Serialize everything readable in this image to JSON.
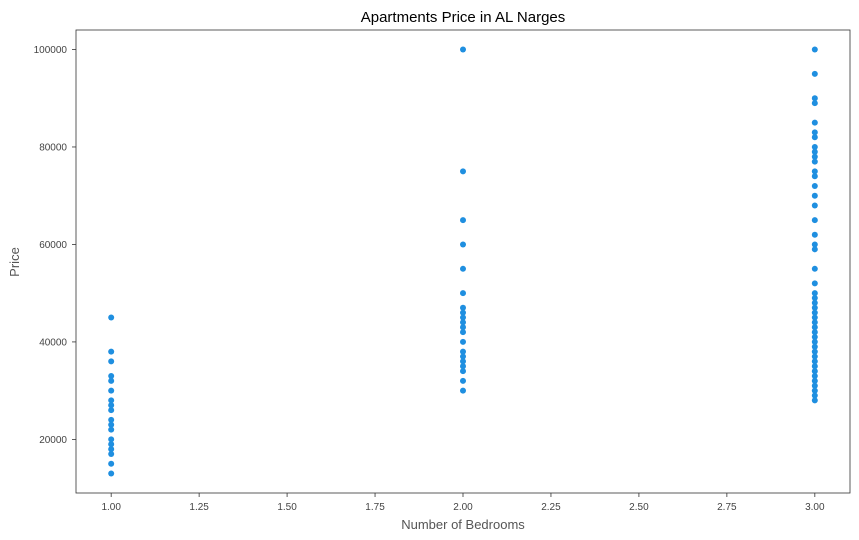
{
  "chart_data": {
    "type": "scatter",
    "title": "Apartments Price in AL Narges",
    "xlabel": "Number of Bedrooms",
    "ylabel": "Price",
    "xlim": [
      0.9,
      3.1
    ],
    "ylim": [
      9000,
      104000
    ],
    "xticks": [
      "1.00",
      "1.25",
      "1.50",
      "1.75",
      "2.00",
      "2.25",
      "2.50",
      "2.75",
      "3.00"
    ],
    "yticks": [
      "20000",
      "40000",
      "60000",
      "80000",
      "100000"
    ],
    "grid": false,
    "marker_color": "#1f8fe0",
    "points": [
      {
        "x": 1,
        "y": 45000
      },
      {
        "x": 1,
        "y": 38000
      },
      {
        "x": 1,
        "y": 36000
      },
      {
        "x": 1,
        "y": 33000
      },
      {
        "x": 1,
        "y": 32000
      },
      {
        "x": 1,
        "y": 30000
      },
      {
        "x": 1,
        "y": 28000
      },
      {
        "x": 1,
        "y": 27000
      },
      {
        "x": 1,
        "y": 26000
      },
      {
        "x": 1,
        "y": 24000
      },
      {
        "x": 1,
        "y": 23000
      },
      {
        "x": 1,
        "y": 22000
      },
      {
        "x": 1,
        "y": 20000
      },
      {
        "x": 1,
        "y": 19000
      },
      {
        "x": 1,
        "y": 18000
      },
      {
        "x": 1,
        "y": 17000
      },
      {
        "x": 1,
        "y": 15000
      },
      {
        "x": 1,
        "y": 13000
      },
      {
        "x": 2,
        "y": 100000
      },
      {
        "x": 2,
        "y": 75000
      },
      {
        "x": 2,
        "y": 65000
      },
      {
        "x": 2,
        "y": 60000
      },
      {
        "x": 2,
        "y": 55000
      },
      {
        "x": 2,
        "y": 50000
      },
      {
        "x": 2,
        "y": 47000
      },
      {
        "x": 2,
        "y": 46000
      },
      {
        "x": 2,
        "y": 45000
      },
      {
        "x": 2,
        "y": 44000
      },
      {
        "x": 2,
        "y": 43000
      },
      {
        "x": 2,
        "y": 42000
      },
      {
        "x": 2,
        "y": 40000
      },
      {
        "x": 2,
        "y": 38000
      },
      {
        "x": 2,
        "y": 37000
      },
      {
        "x": 2,
        "y": 36000
      },
      {
        "x": 2,
        "y": 35000
      },
      {
        "x": 2,
        "y": 34000
      },
      {
        "x": 2,
        "y": 32000
      },
      {
        "x": 2,
        "y": 30000
      },
      {
        "x": 3,
        "y": 100000
      },
      {
        "x": 3,
        "y": 95000
      },
      {
        "x": 3,
        "y": 90000
      },
      {
        "x": 3,
        "y": 89000
      },
      {
        "x": 3,
        "y": 85000
      },
      {
        "x": 3,
        "y": 83000
      },
      {
        "x": 3,
        "y": 82000
      },
      {
        "x": 3,
        "y": 80000
      },
      {
        "x": 3,
        "y": 79000
      },
      {
        "x": 3,
        "y": 78000
      },
      {
        "x": 3,
        "y": 77000
      },
      {
        "x": 3,
        "y": 75000
      },
      {
        "x": 3,
        "y": 74000
      },
      {
        "x": 3,
        "y": 72000
      },
      {
        "x": 3,
        "y": 70000
      },
      {
        "x": 3,
        "y": 68000
      },
      {
        "x": 3,
        "y": 65000
      },
      {
        "x": 3,
        "y": 62000
      },
      {
        "x": 3,
        "y": 60000
      },
      {
        "x": 3,
        "y": 59000
      },
      {
        "x": 3,
        "y": 55000
      },
      {
        "x": 3,
        "y": 52000
      },
      {
        "x": 3,
        "y": 50000
      },
      {
        "x": 3,
        "y": 49000
      },
      {
        "x": 3,
        "y": 48000
      },
      {
        "x": 3,
        "y": 47000
      },
      {
        "x": 3,
        "y": 46000
      },
      {
        "x": 3,
        "y": 45000
      },
      {
        "x": 3,
        "y": 44000
      },
      {
        "x": 3,
        "y": 43000
      },
      {
        "x": 3,
        "y": 42000
      },
      {
        "x": 3,
        "y": 41000
      },
      {
        "x": 3,
        "y": 40000
      },
      {
        "x": 3,
        "y": 39000
      },
      {
        "x": 3,
        "y": 38000
      },
      {
        "x": 3,
        "y": 37000
      },
      {
        "x": 3,
        "y": 36000
      },
      {
        "x": 3,
        "y": 35000
      },
      {
        "x": 3,
        "y": 34000
      },
      {
        "x": 3,
        "y": 33000
      },
      {
        "x": 3,
        "y": 32000
      },
      {
        "x": 3,
        "y": 31000
      },
      {
        "x": 3,
        "y": 30000
      },
      {
        "x": 3,
        "y": 29000
      },
      {
        "x": 3,
        "y": 28000
      }
    ]
  }
}
